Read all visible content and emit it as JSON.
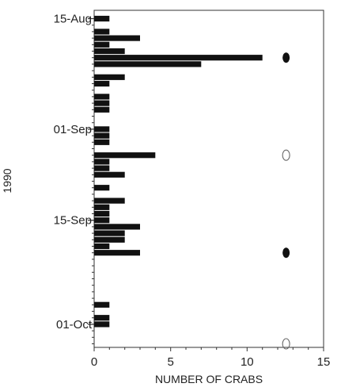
{
  "chart_data": {
    "type": "bar",
    "orientation": "horizontal",
    "xlabel": "NUMBER OF CRABS",
    "ylabel": "1990",
    "xlim": [
      0,
      15
    ],
    "x_ticks": [
      0,
      5,
      10,
      15
    ],
    "y_tick_labels": [
      "15-Aug",
      "01-Sep",
      "15-Sep",
      "01-Oct"
    ],
    "categories": [
      "Aug 15",
      "Aug 17",
      "Aug 18",
      "Aug 19",
      "Aug 20",
      "Aug 21",
      "Aug 22",
      "Aug 24",
      "Aug 25",
      "Aug 27",
      "Aug 28",
      "Aug 29",
      "Sep 1",
      "Sep 2",
      "Sep 3",
      "Sep 5",
      "Sep 6",
      "Sep 7",
      "Sep 8",
      "Sep 10",
      "Sep 12",
      "Sep 13",
      "Sep 14",
      "Sep 15",
      "Sep 16",
      "Sep 17",
      "Sep 18",
      "Sep 19",
      "Sep 20",
      "Sep 28",
      "Sep 30",
      "Oct 1"
    ],
    "values": [
      1,
      1,
      3,
      1,
      2,
      11,
      7,
      2,
      1,
      1,
      1,
      1,
      1,
      1,
      1,
      4,
      1,
      1,
      2,
      1,
      2,
      1,
      1,
      1,
      3,
      2,
      2,
      1,
      3,
      1,
      1,
      1
    ],
    "moon_phases": [
      {
        "date": "Aug 21",
        "phase": "full"
      },
      {
        "date": "Sep 5",
        "phase": "new"
      },
      {
        "date": "Sep 20",
        "phase": "full"
      },
      {
        "date": "Oct 4",
        "phase": "new"
      }
    ],
    "colors": {
      "bar": "#111111",
      "axis": "#333333"
    }
  }
}
